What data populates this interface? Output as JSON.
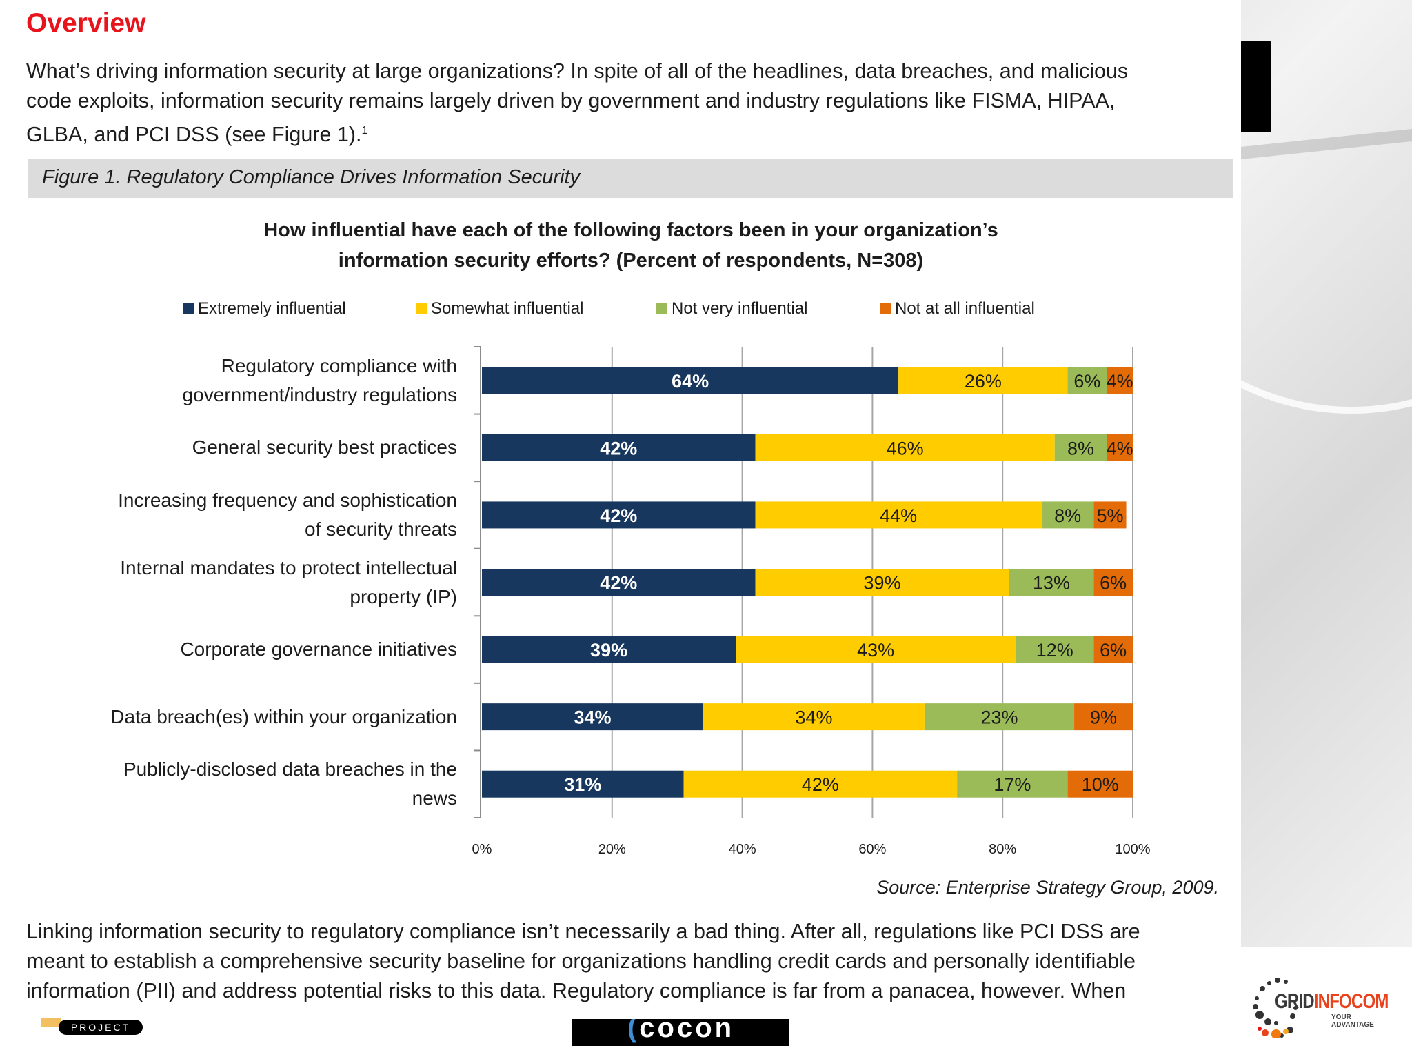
{
  "document": {
    "title": "Overview",
    "intro_lines": [
      "What’s driving information security at large organizations?  In spite of all of the headlines, data breaches, and malicious",
      "code exploits, information security remains largely driven by government and industry regulations like FISMA, HIPAA,",
      "GLBA, and PCI DSS (see Figure 1)."
    ],
    "footnote_mark": "1",
    "figure_caption": "Figure 1. Regulatory Compliance Drives Information Security",
    "source": "Source: Enterprise Strategy Group, 2009.",
    "body_lines": [
      "Linking information security to regulatory compliance isn’t necessarily a bad thing.  After all, regulations like PCI DSS are",
      "meant to establish a comprehensive security baseline for organizations handling credit cards and personally identifiable",
      "information (PII) and address potential risks to this data.  Regulatory compliance is far from a panacea, however.  When"
    ]
  },
  "logos": {
    "project": "PROJECT",
    "cocon": "COCON",
    "grid_infocom": {
      "name_a": "GRID",
      "name_b": "INFOCOM",
      "tagline": "YOUR ADVANTAGE"
    }
  },
  "chart_data": {
    "type": "bar",
    "orientation": "horizontal",
    "stacked": true,
    "title_lines": [
      "How influential have each of the following factors been in your organization’s",
      "information security efforts? (Percent of respondents, N=308)"
    ],
    "categories": [
      [
        "Regulatory compliance with",
        "government/industry regulations"
      ],
      [
        "General security best practices"
      ],
      [
        "Increasing frequency and sophistication",
        "of security threats"
      ],
      [
        "Internal mandates to protect intellectual",
        "property (IP)"
      ],
      [
        "Corporate governance initiatives"
      ],
      [
        "Data breach(es) within your organization"
      ],
      [
        "Publicly-disclosed data breaches in the",
        "news"
      ]
    ],
    "series": [
      {
        "name": "Extremely influential",
        "color": "#17375e",
        "label_color": "#ffffff",
        "values": [
          64,
          42,
          42,
          42,
          39,
          34,
          31
        ]
      },
      {
        "name": "Somewhat influential",
        "color": "#ffcc00",
        "label_color": "#1c1c1c",
        "values": [
          26,
          46,
          44,
          39,
          43,
          34,
          42
        ]
      },
      {
        "name": "Not very influential",
        "color": "#9bbb59",
        "label_color": "#1c1c1c",
        "values": [
          6,
          8,
          8,
          13,
          12,
          23,
          17
        ]
      },
      {
        "name": "Not at all influential",
        "color": "#e36c09",
        "label_color": "#1c1c1c",
        "values": [
          4,
          4,
          5,
          6,
          6,
          9,
          10
        ]
      }
    ],
    "xlim": [
      0,
      100
    ],
    "xticks": [
      "0%",
      "20%",
      "40%",
      "60%",
      "80%",
      "100%"
    ],
    "grid": true,
    "legend_position": "top"
  }
}
